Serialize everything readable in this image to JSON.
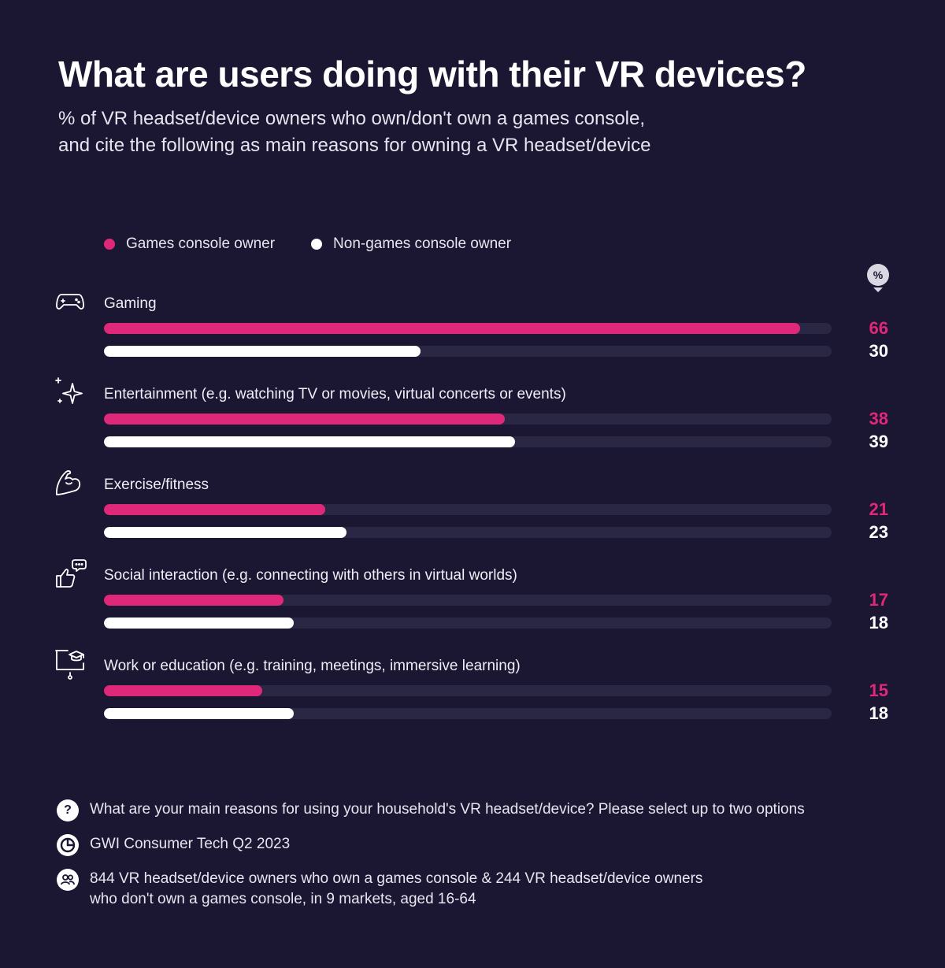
{
  "title": "What are users doing with their VR devices?",
  "subtitle": {
    "line1": "% of VR headset/device owners who own/don't own a games console,",
    "line2": "and cite the following as main reasons for owning a VR headset/device"
  },
  "colors": {
    "console": "#e0287a",
    "non_console": "#ffffff",
    "track": "#2a2744",
    "background": "#1b1632"
  },
  "percent_badge": "%",
  "chart_data": {
    "type": "bar",
    "orientation": "horizontal",
    "categories": [
      "Gaming",
      "Entertainment (e.g. watching TV or movies, virtual concerts or events)",
      "Exercise/fitness",
      "Social interaction (e.g. connecting with others in virtual worlds)",
      "Work or education (e.g. training, meetings, immersive learning)"
    ],
    "icons": [
      "gamepad-icon",
      "sparkles-icon",
      "flexed-arm-icon",
      "thumbs-up-chat-icon",
      "presentation-graduation-icon"
    ],
    "series": [
      {
        "name": "Games console owner",
        "values": [
          66,
          38,
          21,
          17,
          15
        ]
      },
      {
        "name": "Non-games console owner",
        "values": [
          30,
          39,
          23,
          18,
          18
        ]
      }
    ],
    "xlim": [
      0,
      69
    ],
    "legend": "top-left"
  },
  "footer": {
    "question_icon": "?",
    "question": "What are your main reasons for using your household's VR headset/device? Please select up to two options",
    "source": "GWI Consumer Tech Q2 2023",
    "sample_line1": "844 VR headset/device owners who own a games console & 244 VR headset/device owners",
    "sample_line2": "who don't own a games console, in 9 markets, aged 16-64"
  }
}
